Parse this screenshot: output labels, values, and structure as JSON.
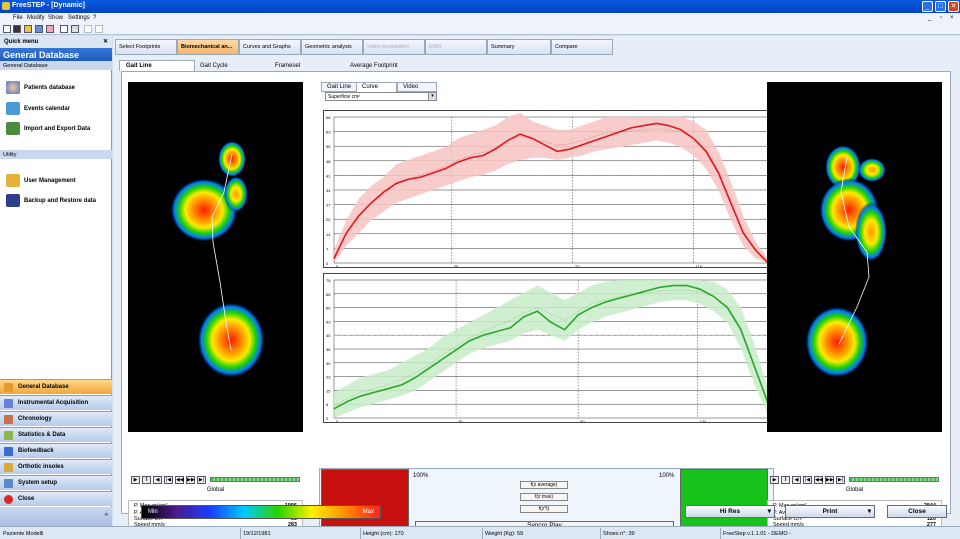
{
  "window": {
    "title": "FreeSTEP - [Dynamic]"
  },
  "menu": [
    "File",
    "Modify",
    "Show",
    "Settings",
    "?"
  ],
  "sidebar": {
    "header": "Quick menu",
    "title": "General Database",
    "section1": "General Database",
    "items1": [
      "Patients database",
      "Events calendar",
      "Import and Export Data"
    ],
    "section2": "Utility",
    "items2": [
      "User Management",
      "Backup and Restore data"
    ],
    "nav": [
      "General Database",
      "Instrumental Acquisition",
      "Chronology",
      "Statistics & Data",
      "Biofeedback",
      "Orthotic insoles",
      "System setup",
      "Close"
    ]
  },
  "tabs": [
    "Select Footprints",
    "Biomechanical an...",
    "Curves and Graphs",
    "Geometric analysis",
    "Video Acquisition",
    "EMG",
    "Summary",
    "Compare"
  ],
  "subtabs": [
    "Gait Line",
    "Gait Cycle",
    "Frameset",
    "Average Footprint"
  ],
  "chart_tabs": [
    "Gait Line",
    "Curve",
    "Video"
  ],
  "dropdown": {
    "value": "Superficie cm²"
  },
  "chart_data": [
    {
      "type": "line",
      "color": "#e0191c",
      "band_color": "#f8c3c3",
      "y_ticks": [
        "68",
        "63",
        "55",
        "48",
        "41",
        "34",
        "27",
        "20",
        "14",
        "7",
        "0"
      ],
      "x_ticks": [
        "0",
        "38",
        "77",
        "116"
      ],
      "xlim": [
        0,
        140
      ],
      "ylim": [
        0,
        68
      ],
      "x": [
        0,
        4,
        8,
        12,
        16,
        20,
        24,
        28,
        32,
        36,
        40,
        44,
        48,
        52,
        56,
        60,
        64,
        68,
        72,
        76,
        80,
        84,
        88,
        92,
        96,
        100,
        104,
        108,
        112,
        116,
        120,
        124,
        128,
        132,
        136,
        140
      ],
      "values": [
        2,
        14,
        22,
        28,
        33,
        37,
        39,
        40,
        42,
        44,
        47,
        49,
        50,
        53,
        57,
        60,
        58,
        55,
        52,
        53,
        55,
        57,
        59,
        61,
        63,
        64,
        65,
        64,
        62,
        58,
        52,
        42,
        28,
        14,
        6,
        0
      ],
      "band_lo": [
        0,
        8,
        14,
        20,
        24,
        28,
        30,
        32,
        34,
        36,
        38,
        40,
        41,
        43,
        46,
        48,
        49,
        49,
        48,
        49,
        50,
        52,
        53,
        54,
        55,
        56,
        57,
        56,
        54,
        50,
        44,
        34,
        20,
        8,
        2,
        0
      ],
      "band_hi": [
        6,
        20,
        30,
        36,
        40,
        46,
        48,
        50,
        52,
        54,
        58,
        60,
        62,
        64,
        68,
        70,
        66,
        64,
        62,
        62,
        64,
        66,
        68,
        68,
        68,
        68,
        68,
        68,
        68,
        66,
        62,
        52,
        38,
        22,
        10,
        2
      ]
    },
    {
      "type": "line",
      "color": "#2ca52c",
      "band_color": "#c8ebc8",
      "y_ticks": [
        "75",
        "68",
        "60",
        "53",
        "45",
        "38",
        "30",
        "23",
        "15",
        "8",
        "0"
      ],
      "x_ticks": [
        "0",
        "45",
        "90",
        "134"
      ],
      "xlim": [
        0,
        160
      ],
      "ylim": [
        0,
        75
      ],
      "x": [
        0,
        5,
        10,
        15,
        20,
        25,
        30,
        35,
        40,
        45,
        50,
        55,
        60,
        65,
        70,
        75,
        80,
        85,
        90,
        95,
        100,
        105,
        110,
        115,
        120,
        125,
        130,
        135,
        140,
        145,
        150,
        155,
        160
      ],
      "values": [
        5,
        9,
        12,
        14,
        16,
        18,
        22,
        27,
        32,
        37,
        42,
        45,
        47,
        49,
        55,
        58,
        52,
        48,
        56,
        60,
        63,
        65,
        67,
        69,
        71,
        72,
        72,
        70,
        66,
        60,
        48,
        28,
        8
      ],
      "band_lo": [
        0,
        3,
        6,
        8,
        10,
        12,
        15,
        20,
        25,
        30,
        35,
        38,
        40,
        42,
        46,
        48,
        45,
        42,
        48,
        52,
        55,
        57,
        59,
        61,
        63,
        64,
        64,
        62,
        58,
        52,
        38,
        18,
        2
      ],
      "band_hi": [
        14,
        18,
        22,
        24,
        26,
        30,
        34,
        38,
        44,
        48,
        52,
        56,
        60,
        64,
        68,
        72,
        68,
        64,
        68,
        72,
        74,
        75,
        75,
        75,
        75,
        75,
        75,
        75,
        74,
        70,
        60,
        40,
        16
      ]
    }
  ],
  "left_foot": {
    "controls": [
      "▶",
      "‖",
      "◀",
      "|◀",
      "◀◀",
      "▶▶",
      "▶|"
    ],
    "label": "Global",
    "stats": [
      {
        "label": "P. Max gr/cm²",
        "value": "1996"
      },
      {
        "label": "P. Avg gr/cm²",
        "value": "720"
      },
      {
        "label": "Surface cm²",
        "value": "98"
      },
      {
        "label": "Speed mm/s",
        "value": "283"
      }
    ]
  },
  "right_foot": {
    "controls": [
      "▶",
      "‖",
      "◀",
      "|◀",
      "◀◀",
      "▶▶",
      "▶|"
    ],
    "label": "Global",
    "stats": [
      {
        "label": "P. Max gr/cm²",
        "value": "2844"
      },
      {
        "label": "P. Avg gr/cm²",
        "value": "634"
      },
      {
        "label": "Surface cm²",
        "value": "120"
      },
      {
        "label": "Speed mm/s",
        "value": "277"
      }
    ]
  },
  "compare": {
    "left_pct": "100%",
    "right_pct": "100%",
    "left_color": "#c8100f",
    "right_color": "#17c21a",
    "buttons": [
      "f(z average)",
      "f(z max)",
      "f(z*t)"
    ],
    "syncro": "Syncro Play"
  },
  "legend": {
    "min": "Min",
    "max": "Max"
  },
  "bottom_buttons": {
    "hires": "Hi Res",
    "print": "Print",
    "close": "Close"
  },
  "status": {
    "name": "Paziente Modelli",
    "date": "19/12/1981",
    "height": "Height (cm): 170",
    "weight": "Weight (Kg): 59",
    "shoes": "Shoes n°: 39",
    "version": "FreeStep v.1.1.01 - DEMO -"
  }
}
